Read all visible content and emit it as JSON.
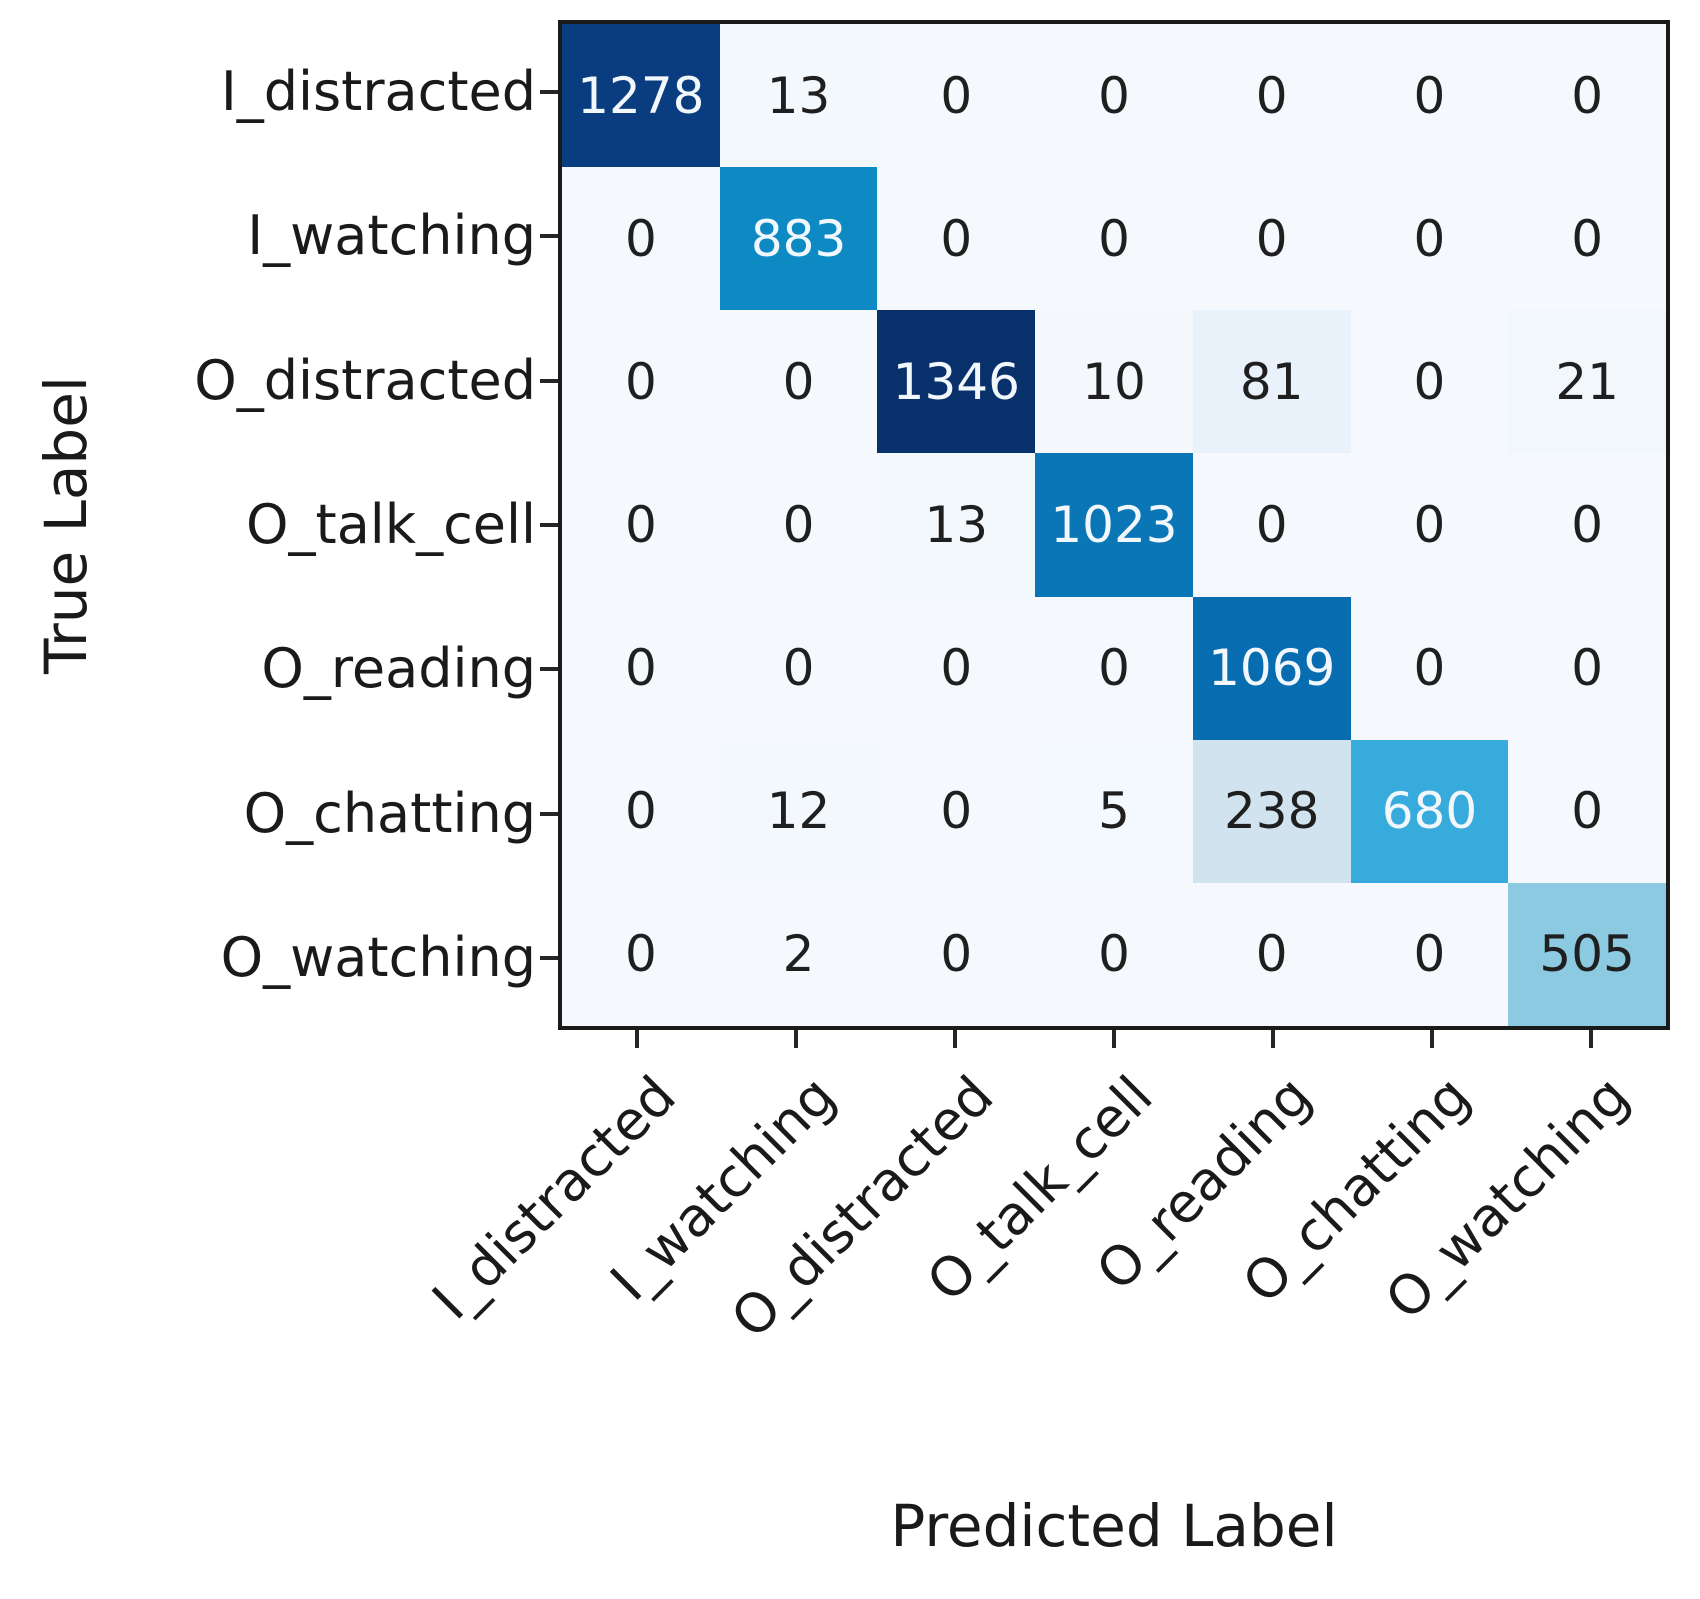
{
  "figure": {
    "background": "#ffffff"
  },
  "chart_data": {
    "type": "heatmap",
    "title": "",
    "xlabel": "Predicted Label",
    "ylabel": "True Label",
    "categories": [
      "I_distracted",
      "I_watching",
      "O_distracted",
      "O_talk_cell",
      "O_reading",
      "O_chatting",
      "O_watching"
    ],
    "rows": [
      "I_distracted",
      "I_watching",
      "O_distracted",
      "O_talk_cell",
      "O_reading",
      "O_chatting",
      "O_watching"
    ],
    "matrix": [
      [
        1278,
        13,
        0,
        0,
        0,
        0,
        0
      ],
      [
        0,
        883,
        0,
        0,
        0,
        0,
        0
      ],
      [
        0,
        0,
        1346,
        10,
        81,
        0,
        21
      ],
      [
        0,
        0,
        13,
        1023,
        0,
        0,
        0
      ],
      [
        0,
        0,
        0,
        0,
        1069,
        0,
        0
      ],
      [
        0,
        12,
        0,
        5,
        238,
        680,
        0
      ],
      [
        0,
        2,
        0,
        0,
        0,
        0,
        505
      ]
    ],
    "vmin": 0,
    "vmax": 1346,
    "colormap": "Blues",
    "color_stops": [
      [
        0,
        "#f5f9fd"
      ],
      [
        81,
        "#e9f1fa"
      ],
      [
        238,
        "#d2e3f0"
      ],
      [
        505,
        "#8ccae2"
      ],
      [
        680,
        "#36abdc"
      ],
      [
        883,
        "#0d8ac4"
      ],
      [
        1023,
        "#0b76b6"
      ],
      [
        1069,
        "#086cb0"
      ],
      [
        1278,
        "#0a3d80"
      ],
      [
        1346,
        "#08306b"
      ]
    ],
    "text_threshold": 600,
    "cell_text_dark": "#1f1f1f",
    "cell_text_light": "#f2f7fc",
    "spine_color": "#1a1a1a",
    "tick_color": "#262626",
    "legend": "none",
    "grid": "off"
  }
}
